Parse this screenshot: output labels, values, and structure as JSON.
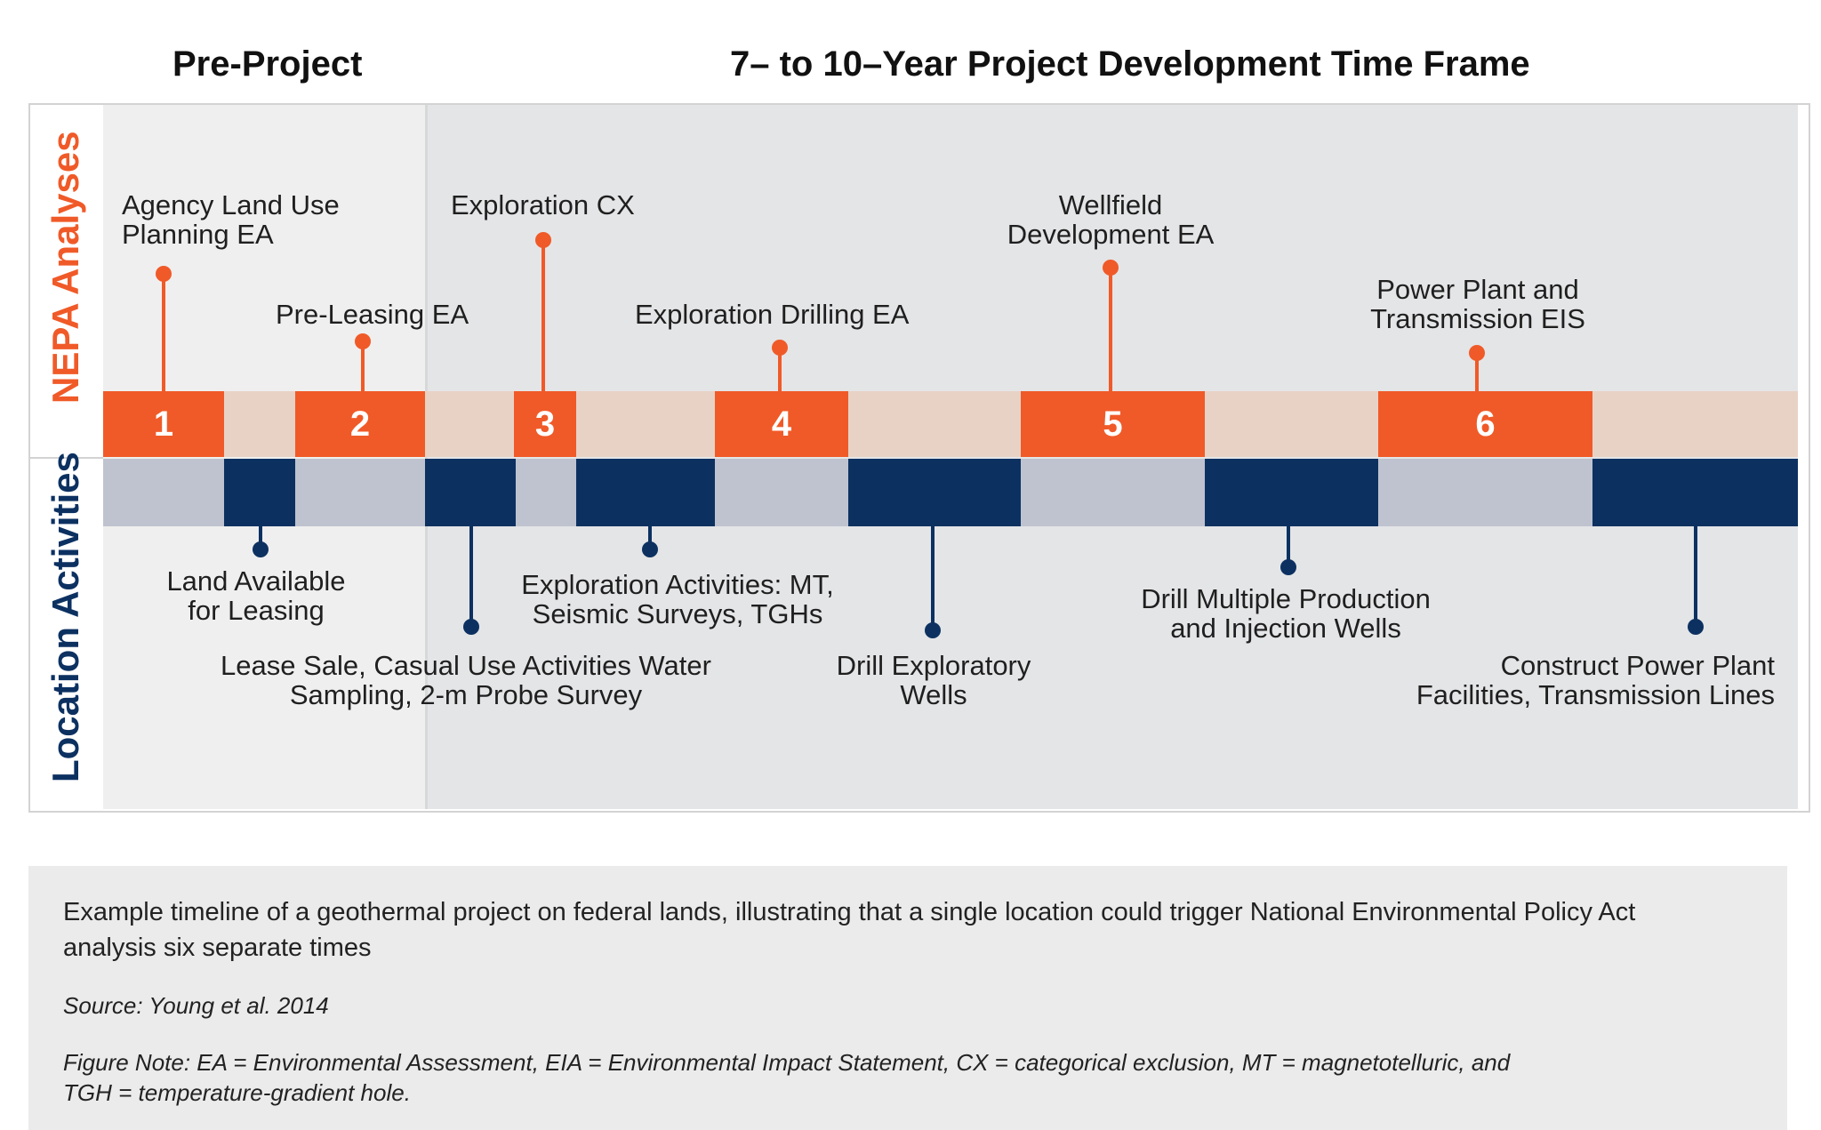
{
  "header": {
    "pre_project": "Pre-Project",
    "time_frame": "7– to 10–Year Project Development Time Frame"
  },
  "rows": {
    "nepa": "NEPA Analyses",
    "location": "Location Activities"
  },
  "nepa_milestones": [
    {
      "number": "1",
      "label_lines": [
        "Agency Land Use",
        "Planning EA"
      ]
    },
    {
      "number": "2",
      "label_lines": [
        "Pre-Leasing EA"
      ]
    },
    {
      "number": "3",
      "label_lines": [
        "Exploration CX"
      ]
    },
    {
      "number": "4",
      "label_lines": [
        "Exploration Drilling EA"
      ]
    },
    {
      "number": "5",
      "label_lines": [
        "Wellfield",
        "Development EA"
      ]
    },
    {
      "number": "6",
      "label_lines": [
        "Power Plant and",
        "Transmission EIS"
      ]
    }
  ],
  "location_activities": [
    {
      "label_lines": [
        "Land Available",
        "for Leasing"
      ]
    },
    {
      "label_lines": [
        "Lease Sale, Casual Use Activities Water",
        "Sampling, 2-m Probe Survey"
      ]
    },
    {
      "label_lines": [
        "Exploration Activities: MT,",
        "Seismic Surveys, TGHs"
      ]
    },
    {
      "label_lines": [
        "Drill Exploratory",
        "Wells"
      ]
    },
    {
      "label_lines": [
        "Drill Multiple Production",
        "and Injection Wells"
      ]
    },
    {
      "label_lines": [
        "Construct Power Plant",
        "Facilities, Transmission Lines"
      ]
    }
  ],
  "caption": {
    "text_lines": [
      "Example timeline of a geothermal project on federal lands, illustrating that a single location could trigger National Environmental Policy Act",
      "analysis six separate times"
    ],
    "source": "Source: Young et al. 2014",
    "note_lines": [
      "Figure Note: EA = Environmental Assessment, EIA = Environmental Impact Statement, CX = categorical exclusion, MT = magnetotelluric, and",
      "TGH = temperature-gradient hole."
    ]
  },
  "colors": {
    "orange": "#f05a28",
    "navy": "#0c3161",
    "peach_band": "#e8d2c6",
    "gray_band": "#bfc3cf",
    "pre_project_bg": "#efefef",
    "project_bg": "#e4e5e7",
    "caption_bg": "#ebebeb"
  }
}
